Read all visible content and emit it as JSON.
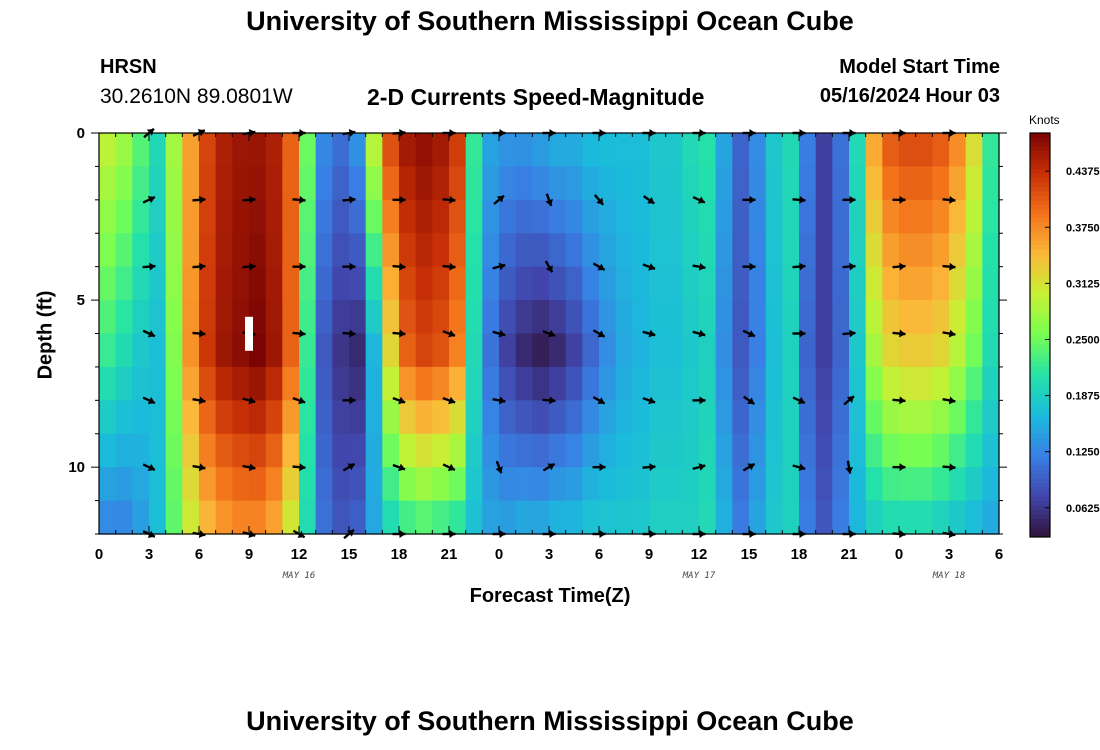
{
  "header": {
    "title": "University of Southern Mississippi Ocean Cube",
    "station": "HRSN",
    "coords": "30.2610N  89.0801W",
    "subtitle": "2-D Currents Speed-Magnitude",
    "start_label": "Model Start Time",
    "start_value": "05/16/2024 Hour 03"
  },
  "footer": {
    "title": "University of Southern Mississippi Ocean Cube"
  },
  "colorbar": {
    "unit": "Knots",
    "ticks": [
      "0.0625",
      "0.1250",
      "0.1875",
      "0.2500",
      "0.3125",
      "0.3750",
      "0.4375"
    ],
    "tick_values": [
      0.0625,
      0.125,
      0.1875,
      0.25,
      0.3125,
      0.375,
      0.4375
    ],
    "range": [
      0.03,
      0.48
    ]
  },
  "chart_data": {
    "type": "heatmap",
    "title": "2-D Currents Speed-Magnitude",
    "xlabel": "Forecast Time(Z)",
    "ylabel": "Depth (ft)",
    "x_range_hours": [
      0,
      54
    ],
    "y_range_ft": [
      0,
      12
    ],
    "x_tick_hours": [
      0,
      3,
      6,
      9,
      12,
      15,
      18,
      21,
      24,
      27,
      30,
      33,
      36,
      39,
      42,
      45,
      48,
      51,
      54
    ],
    "x_tick_labels": [
      "0",
      "3",
      "6",
      "9",
      "12",
      "15",
      "18",
      "21",
      "0",
      "3",
      "6",
      "9",
      "12",
      "15",
      "18",
      "21",
      "0",
      "3",
      "6"
    ],
    "y_ticks": [
      0,
      5,
      10
    ],
    "y_tick_labels": [
      "0",
      "5",
      "10"
    ],
    "date_labels": [
      {
        "hour": 12,
        "label": "MAY 16"
      },
      {
        "hour": 36,
        "label": "MAY 17"
      },
      {
        "hour": 51,
        "label": "MAY 18"
      }
    ],
    "speed_profile": {
      "hours": [
        0,
        1,
        2,
        3,
        4,
        5,
        6,
        7,
        8,
        9,
        10,
        11,
        12,
        13,
        14,
        15,
        16,
        17,
        18,
        19,
        20,
        21,
        22,
        23,
        24,
        25,
        26,
        27,
        28,
        29,
        30,
        31,
        32,
        33,
        34,
        35,
        36,
        37,
        38,
        39,
        40,
        41,
        42,
        43,
        44,
        45,
        46,
        47,
        48,
        49,
        50,
        51,
        52,
        53,
        54
      ],
      "surface_knots": [
        0.3,
        0.28,
        0.24,
        0.2,
        0.28,
        0.36,
        0.42,
        0.45,
        0.46,
        0.46,
        0.45,
        0.4,
        0.25,
        0.13,
        0.11,
        0.14,
        0.3,
        0.42,
        0.46,
        0.47,
        0.46,
        0.43,
        0.22,
        0.15,
        0.14,
        0.14,
        0.15,
        0.16,
        0.16,
        0.17,
        0.17,
        0.17,
        0.17,
        0.18,
        0.18,
        0.2,
        0.21,
        0.15,
        0.1,
        0.13,
        0.18,
        0.2,
        0.12,
        0.07,
        0.11,
        0.2,
        0.36,
        0.41,
        0.42,
        0.42,
        0.41,
        0.38,
        0.32,
        0.22,
        0.2
      ],
      "midwater_knots": [
        0.22,
        0.2,
        0.18,
        0.17,
        0.26,
        0.37,
        0.43,
        0.46,
        0.47,
        0.48,
        0.46,
        0.4,
        0.22,
        0.09,
        0.06,
        0.05,
        0.16,
        0.32,
        0.4,
        0.42,
        0.41,
        0.38,
        0.2,
        0.11,
        0.07,
        0.05,
        0.04,
        0.05,
        0.07,
        0.1,
        0.13,
        0.15,
        0.16,
        0.17,
        0.17,
        0.18,
        0.19,
        0.13,
        0.09,
        0.12,
        0.17,
        0.19,
        0.1,
        0.07,
        0.1,
        0.18,
        0.28,
        0.32,
        0.33,
        0.33,
        0.32,
        0.29,
        0.25,
        0.2,
        0.18
      ],
      "bottom_knots": [
        0.12,
        0.12,
        0.14,
        0.17,
        0.24,
        0.3,
        0.34,
        0.36,
        0.37,
        0.37,
        0.35,
        0.3,
        0.2,
        0.11,
        0.09,
        0.1,
        0.15,
        0.19,
        0.21,
        0.22,
        0.21,
        0.2,
        0.17,
        0.15,
        0.15,
        0.16,
        0.16,
        0.17,
        0.17,
        0.18,
        0.18,
        0.18,
        0.18,
        0.19,
        0.19,
        0.19,
        0.2,
        0.16,
        0.12,
        0.15,
        0.18,
        0.19,
        0.12,
        0.09,
        0.12,
        0.16,
        0.18,
        0.19,
        0.19,
        0.19,
        0.18,
        0.17,
        0.16,
        0.15,
        0.14
      ]
    },
    "vector_hours": [
      3,
      6,
      9,
      12,
      15,
      18,
      21,
      24,
      27,
      30,
      33,
      36,
      39,
      42,
      45,
      48,
      51
    ],
    "vector_depths_ft": [
      0,
      2,
      4,
      6,
      8,
      10,
      12
    ],
    "vector_directions_deg": [
      [
        -40,
        -25,
        -10,
        0,
        -10,
        -5,
        0,
        0,
        0,
        0,
        0,
        0,
        0,
        0,
        0,
        0,
        0
      ],
      [
        -25,
        -5,
        -5,
        5,
        -5,
        0,
        5,
        -40,
        70,
        50,
        35,
        25,
        0,
        5,
        0,
        0,
        5
      ],
      [
        -5,
        -5,
        -5,
        0,
        0,
        5,
        5,
        -15,
        60,
        30,
        20,
        10,
        0,
        -5,
        -5,
        -5,
        5
      ],
      [
        25,
        5,
        10,
        5,
        5,
        5,
        20,
        15,
        20,
        30,
        15,
        15,
        25,
        0,
        -5,
        5,
        10
      ],
      [
        25,
        10,
        15,
        20,
        0,
        20,
        20,
        10,
        5,
        30,
        20,
        0,
        35,
        25,
        -40,
        5,
        10
      ],
      [
        25,
        10,
        10,
        5,
        -30,
        20,
        25,
        70,
        -30,
        0,
        -5,
        -15,
        -30,
        15,
        80,
        0,
        5
      ],
      [
        25,
        10,
        15,
        30,
        -40,
        0,
        0,
        0,
        0,
        0,
        0,
        0,
        0,
        0,
        0,
        5,
        10
      ]
    ]
  }
}
